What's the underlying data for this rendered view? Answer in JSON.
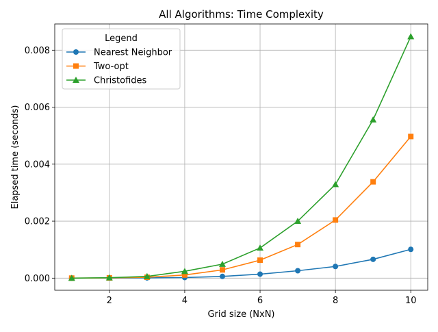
{
  "chart_data": {
    "type": "line",
    "title": "All Algorithms: Time Complexity",
    "xlabel": "Grid size (NxN)",
    "ylabel": "Elapsed time (seconds)",
    "x": [
      1,
      2,
      3,
      4,
      5,
      6,
      7,
      8,
      9,
      10
    ],
    "xlim": [
      0.55,
      10.45
    ],
    "ylim": [
      -0.000425,
      0.00892
    ],
    "xticks": [
      2,
      4,
      6,
      8,
      10
    ],
    "xtick_labels": [
      "2",
      "4",
      "6",
      "8",
      "10"
    ],
    "yticks": [
      0,
      0.002,
      0.004,
      0.006,
      0.008
    ],
    "ytick_labels": [
      "0.000",
      "0.002",
      "0.004",
      "0.006",
      "0.008"
    ],
    "grid": true,
    "legend": {
      "title": "Legend",
      "placement": "top-left"
    },
    "series": [
      {
        "name": "Nearest Neighbor",
        "color": "#1f77b4",
        "marker": "circle",
        "values": [
          5e-07,
          3e-06,
          8e-06,
          2e-05,
          6e-05,
          0.00014,
          0.00026,
          0.00041,
          0.00066,
          0.00101
        ]
      },
      {
        "name": "Two-opt",
        "color": "#ff7f0e",
        "marker": "square",
        "values": [
          1e-06,
          8e-06,
          3e-05,
          0.00011,
          0.00029,
          0.00063,
          0.00118,
          0.00204,
          0.00338,
          0.00497
        ]
      },
      {
        "name": "Christofides",
        "color": "#2ca02c",
        "marker": "triangle",
        "values": [
          1e-06,
          1.5e-05,
          6e-05,
          0.00024,
          0.00049,
          0.00106,
          0.002,
          0.00329,
          0.00556,
          0.00848
        ]
      }
    ]
  }
}
